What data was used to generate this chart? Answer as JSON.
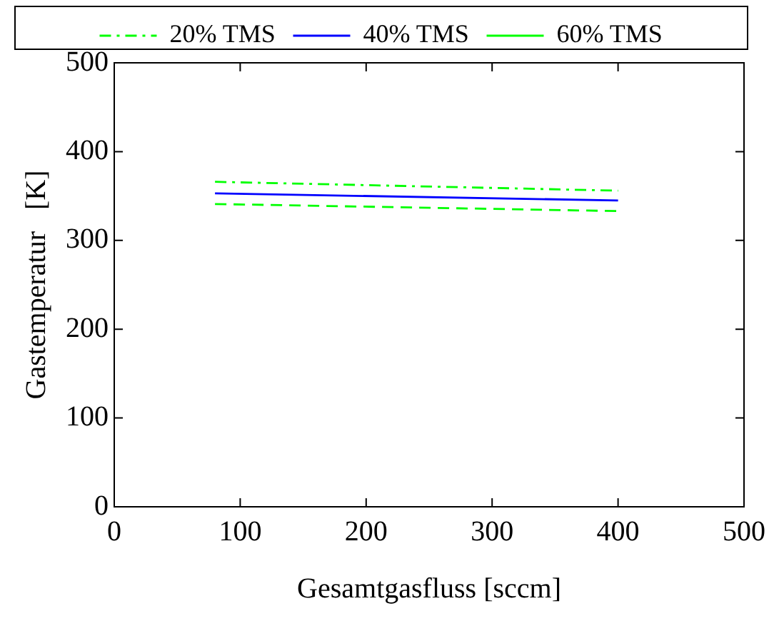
{
  "chart_data": {
    "type": "line",
    "xlabel": "Gesamtgasfluss [sccm]",
    "ylabel": "Gastemperatur   [K]",
    "xlim": [
      0,
      500
    ],
    "xticks": [
      0,
      100,
      200,
      300,
      400,
      500
    ],
    "ylim": [
      0,
      500
    ],
    "yticks": [
      0,
      100,
      200,
      300,
      400,
      500
    ],
    "grid": false,
    "legend": "top",
    "marker": "none",
    "x": [
      80,
      400
    ],
    "series": [
      {
        "name": "20% TMS",
        "color": "#00ff00",
        "values": [
          366,
          356
        ],
        "line_style": "dashdot"
      },
      {
        "name": "40% TMS",
        "color": "#0000ff",
        "values": [
          353,
          345
        ],
        "line_style": "solid"
      },
      {
        "name": "60% TMS",
        "color": "#00ff00",
        "values": [
          341,
          333
        ],
        "line_style": "dashed"
      }
    ]
  }
}
